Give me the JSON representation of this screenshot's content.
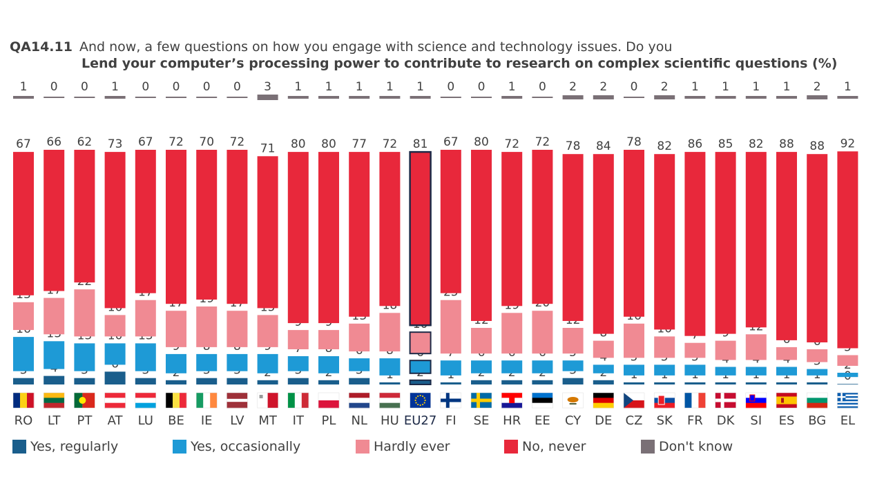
{
  "title": {
    "code": "QA14.11",
    "question": "And now, a few questions on how you engage with science and technology issues. Do you",
    "subtitle": "Lend your computer’s processing power to contribute to research on complex scientific questions (%)"
  },
  "colors": {
    "yes_regularly": "#1a5e8c",
    "yes_occasionally": "#1e9ad6",
    "hardly_ever": "#f08a93",
    "no_never": "#e8283b",
    "dont_know": "#7a7076",
    "eu_outline": "#1d2a47"
  },
  "legend": [
    {
      "key": "yes_regularly",
      "label": "Yes, regularly"
    },
    {
      "key": "yes_occasionally",
      "label": "Yes, occasionally"
    },
    {
      "key": "hardly_ever",
      "label": "Hardly ever"
    },
    {
      "key": "no_never",
      "label": "No, never"
    },
    {
      "key": "dont_know",
      "label": "Don't know"
    }
  ],
  "chart_data": {
    "type": "bar",
    "stacked": true,
    "categories": [
      "RO",
      "LT",
      "PT",
      "AT",
      "LU",
      "BE",
      "IE",
      "LV",
      "MT",
      "IT",
      "PL",
      "NL",
      "HU",
      "EU27",
      "FI",
      "SE",
      "HR",
      "EE",
      "CY",
      "DE",
      "CZ",
      "SK",
      "FR",
      "DK",
      "SI",
      "ES",
      "BG",
      "EL"
    ],
    "highlight": "EU27",
    "series": [
      {
        "name": "Yes, regularly",
        "key": "yes_regularly",
        "values": [
          3,
          4,
          3,
          6,
          3,
          2,
          3,
          3,
          2,
          3,
          2,
          3,
          1,
          2,
          1,
          2,
          2,
          2,
          3,
          2,
          1,
          1,
          1,
          1,
          1,
          1,
          1,
          0
        ]
      },
      {
        "name": "Yes, occasionally",
        "key": "yes_occasionally",
        "values": [
          16,
          13,
          13,
          10,
          13,
          9,
          8,
          8,
          9,
          7,
          8,
          6,
          8,
          6,
          7,
          6,
          6,
          6,
          5,
          4,
          5,
          5,
          5,
          4,
          4,
          4,
          3,
          2
        ]
      },
      {
        "name": "Hardly ever",
        "key": "hardly_ever",
        "values": [
          13,
          17,
          22,
          10,
          17,
          17,
          19,
          17,
          15,
          9,
          9,
          13,
          18,
          10,
          25,
          12,
          19,
          20,
          12,
          8,
          16,
          10,
          7,
          9,
          12,
          6,
          6,
          5
        ]
      },
      {
        "name": "No, never",
        "key": "no_never",
        "values": [
          67,
          66,
          62,
          73,
          67,
          72,
          70,
          72,
          71,
          80,
          80,
          77,
          72,
          81,
          67,
          80,
          72,
          72,
          78,
          84,
          78,
          82,
          86,
          85,
          82,
          88,
          88,
          92
        ]
      },
      {
        "name": "Don't know",
        "key": "dont_know",
        "values": [
          1,
          0,
          0,
          1,
          0,
          0,
          0,
          0,
          3,
          1,
          1,
          1,
          1,
          1,
          0,
          0,
          1,
          0,
          2,
          2,
          0,
          2,
          1,
          1,
          1,
          1,
          2,
          1
        ]
      }
    ]
  }
}
